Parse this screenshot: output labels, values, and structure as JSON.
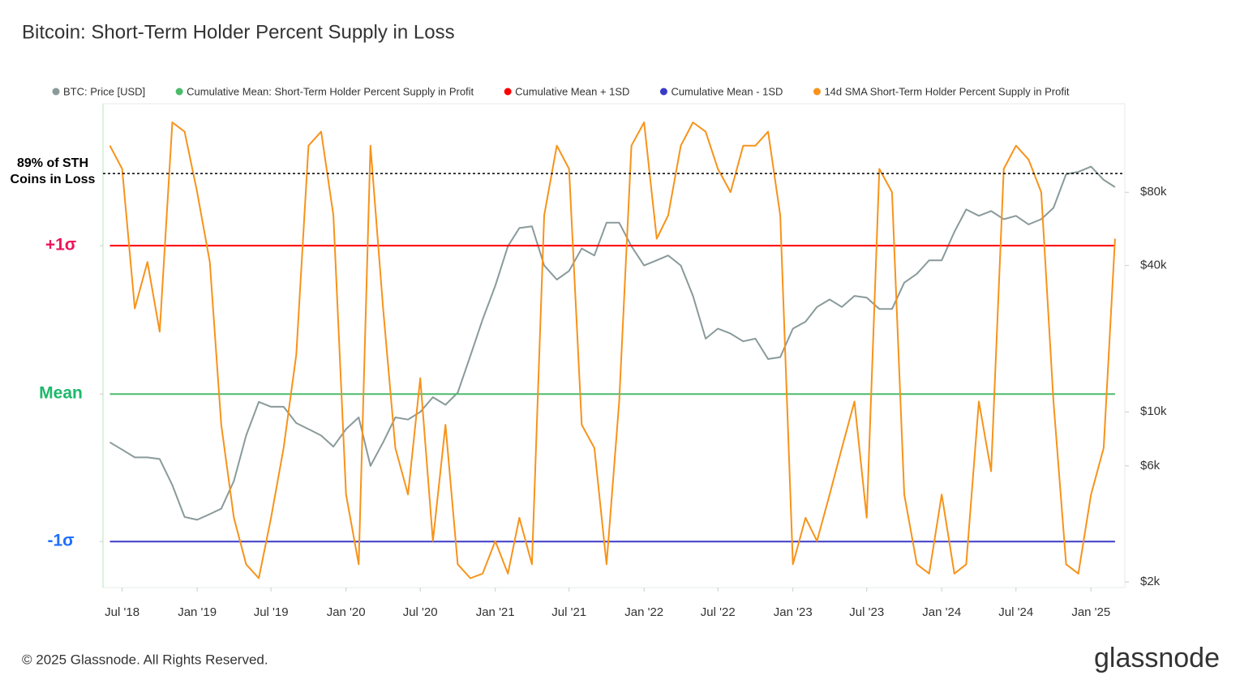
{
  "chart_data": {
    "type": "line",
    "title": "Bitcoin: Short-Term Holder Percent Supply in Loss",
    "x": [
      "2018-06",
      "2018-07",
      "2018-08",
      "2018-09",
      "2018-10",
      "2018-11",
      "2018-12",
      "2019-01",
      "2019-02",
      "2019-03",
      "2019-04",
      "2019-05",
      "2019-06",
      "2019-07",
      "2019-08",
      "2019-09",
      "2019-10",
      "2019-11",
      "2019-12",
      "2020-01",
      "2020-02",
      "2020-03",
      "2020-04",
      "2020-05",
      "2020-06",
      "2020-07",
      "2020-08",
      "2020-09",
      "2020-10",
      "2020-11",
      "2020-12",
      "2021-01",
      "2021-02",
      "2021-03",
      "2021-04",
      "2021-05",
      "2021-06",
      "2021-07",
      "2021-08",
      "2021-09",
      "2021-10",
      "2021-11",
      "2021-12",
      "2022-01",
      "2022-02",
      "2022-03",
      "2022-04",
      "2022-05",
      "2022-06",
      "2022-07",
      "2022-08",
      "2022-09",
      "2022-10",
      "2022-11",
      "2022-12",
      "2023-01",
      "2023-02",
      "2023-03",
      "2023-04",
      "2023-05",
      "2023-06",
      "2023-07",
      "2023-08",
      "2023-09",
      "2023-10",
      "2023-11",
      "2023-12",
      "2024-01",
      "2024-02",
      "2024-03",
      "2024-04",
      "2024-05",
      "2024-06",
      "2024-07",
      "2024-08",
      "2024-09",
      "2024-10",
      "2024-11",
      "2024-12",
      "2025-01",
      "2025-02",
      "2025-03"
    ],
    "xlim": [
      "2018-05-15",
      "2025-03-25"
    ],
    "xticks": [
      {
        "value": "2018-07",
        "label": "Jul '18"
      },
      {
        "value": "2019-01",
        "label": "Jan '19"
      },
      {
        "value": "2019-07",
        "label": "Jul '19"
      },
      {
        "value": "2020-01",
        "label": "Jan '20"
      },
      {
        "value": "2020-07",
        "label": "Jul '20"
      },
      {
        "value": "2021-01",
        "label": "Jan '21"
      },
      {
        "value": "2021-07",
        "label": "Jul '21"
      },
      {
        "value": "2022-01",
        "label": "Jan '22"
      },
      {
        "value": "2022-07",
        "label": "Jul '22"
      },
      {
        "value": "2023-01",
        "label": "Jan '23"
      },
      {
        "value": "2023-07",
        "label": "Jul '23"
      },
      {
        "value": "2024-01",
        "label": "Jan '24"
      },
      {
        "value": "2024-07",
        "label": "Jul '24"
      },
      {
        "value": "2025-01",
        "label": "Jan '25"
      }
    ],
    "ylim": [
      0,
      104
    ],
    "yticks": [
      {
        "value": 73.5,
        "label": "+1σ",
        "color": "#f0145a"
      },
      {
        "value": 41.6,
        "label": "Mean",
        "color": "#1cb86b"
      },
      {
        "value": 9.9,
        "label": "-1σ",
        "color": "#1f6fff"
      }
    ],
    "y2lim": [
      1896,
      185000
    ],
    "y2scale": "log",
    "y2ticks": [
      {
        "value": 2000,
        "label": "$2k"
      },
      {
        "value": 6000,
        "label": "$6k"
      },
      {
        "value": 10000,
        "label": "$10k"
      },
      {
        "value": 40000,
        "label": "$40k"
      },
      {
        "value": 80000,
        "label": "$80k"
      }
    ],
    "annotation": {
      "value": 89,
      "label": "89% of STH Coins in Loss"
    },
    "series": [
      {
        "name": "BTC: Price [USD]",
        "color": "#8a9a9a",
        "axis": "y2",
        "values": [
          7500,
          7000,
          6500,
          6500,
          6400,
          5000,
          3700,
          3600,
          3800,
          4000,
          5200,
          8000,
          11000,
          10500,
          10500,
          9000,
          8500,
          8000,
          7200,
          8500,
          9500,
          6000,
          7500,
          9500,
          9300,
          10000,
          11500,
          10700,
          12000,
          17000,
          24000,
          33000,
          48000,
          57000,
          58000,
          40000,
          35000,
          38000,
          47000,
          44000,
          60000,
          60000,
          48000,
          40000,
          42000,
          44000,
          40000,
          30000,
          20000,
          22000,
          21000,
          19500,
          20000,
          16500,
          16800,
          22000,
          23500,
          27000,
          29000,
          27000,
          30000,
          29500,
          26500,
          26500,
          34000,
          37000,
          42000,
          42000,
          55000,
          68000,
          64000,
          67000,
          62000,
          64000,
          59000,
          62000,
          69000,
          95000,
          97000,
          102000,
          90000,
          84000
        ]
      },
      {
        "name": "Cumulative Mean: Short-Term Holder Percent Supply in Profit",
        "color": "#4cbb6c",
        "x": [
          "2018-06",
          "2025-03"
        ],
        "values": [
          41.6,
          41.6
        ]
      },
      {
        "name": "Cumulative Mean + 1SD",
        "color": "#ff0000",
        "x": [
          "2018-06",
          "2025-03"
        ],
        "values": [
          73.5,
          73.5
        ]
      },
      {
        "name": "Cumulative Mean - 1SD",
        "color": "#3b3bc8",
        "x": [
          "2018-06",
          "2025-03"
        ],
        "values": [
          9.9,
          9.9
        ]
      },
      {
        "name": "14d SMA Short-Term Holder Percent Supply in Profit",
        "color": "#f7931a",
        "values": [
          95,
          90,
          60,
          70,
          55,
          100,
          98,
          85,
          70,
          35,
          15,
          5,
          2,
          15,
          30,
          50,
          95,
          98,
          80,
          20,
          5,
          95,
          60,
          30,
          20,
          45,
          10,
          35,
          5,
          2,
          3,
          10,
          3,
          15,
          5,
          80,
          95,
          90,
          35,
          30,
          5,
          40,
          95,
          100,
          75,
          80,
          95,
          100,
          98,
          90,
          85,
          95,
          95,
          98,
          80,
          5,
          15,
          10,
          20,
          30,
          40,
          15,
          90,
          85,
          20,
          5,
          3,
          20,
          3,
          5,
          40,
          25,
          90,
          95,
          92,
          85,
          40,
          5,
          3,
          20,
          30,
          75
        ]
      }
    ],
    "source": "© 2025 Glassnode. All Rights Reserved.",
    "brand": "glassnode"
  }
}
